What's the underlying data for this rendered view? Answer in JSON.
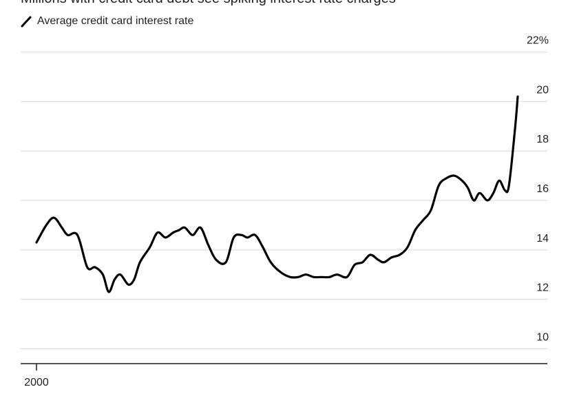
{
  "chart_data": {
    "type": "line",
    "title": "Millions with credit card debt see spiking interest rate charges",
    "legend": {
      "placement": "top-left",
      "entries": [
        "Average credit card interest rate"
      ]
    },
    "series": [
      {
        "name": "Average credit card interest rate",
        "color": "#000000",
        "points": [
          [
            2000.0,
            14.3
          ],
          [
            2000.5,
            15.0
          ],
          [
            2000.9,
            15.3
          ],
          [
            2001.3,
            14.9
          ],
          [
            2001.6,
            14.6
          ],
          [
            2002.1,
            14.6
          ],
          [
            2002.6,
            13.3
          ],
          [
            2003.0,
            13.3
          ],
          [
            2003.4,
            13.0
          ],
          [
            2003.7,
            12.3
          ],
          [
            2004.0,
            12.8
          ],
          [
            2004.3,
            13.0
          ],
          [
            2004.7,
            12.6
          ],
          [
            2005.0,
            12.8
          ],
          [
            2005.3,
            13.5
          ],
          [
            2005.8,
            14.1
          ],
          [
            2006.2,
            14.7
          ],
          [
            2006.6,
            14.5
          ],
          [
            2007.0,
            14.7
          ],
          [
            2007.3,
            14.8
          ],
          [
            2007.6,
            14.9
          ],
          [
            2008.0,
            14.6
          ],
          [
            2008.4,
            14.9
          ],
          [
            2008.8,
            14.2
          ],
          [
            2009.2,
            13.6
          ],
          [
            2009.7,
            13.5
          ],
          [
            2010.1,
            14.5
          ],
          [
            2010.5,
            14.6
          ],
          [
            2010.8,
            14.5
          ],
          [
            2011.2,
            14.6
          ],
          [
            2011.6,
            14.1
          ],
          [
            2012.0,
            13.5
          ],
          [
            2012.5,
            13.1
          ],
          [
            2013.0,
            12.9
          ],
          [
            2013.4,
            12.9
          ],
          [
            2013.8,
            13.0
          ],
          [
            2014.2,
            12.9
          ],
          [
            2014.6,
            12.9
          ],
          [
            2015.0,
            12.9
          ],
          [
            2015.4,
            13.0
          ],
          [
            2015.9,
            12.9
          ],
          [
            2016.3,
            13.4
          ],
          [
            2016.7,
            13.5
          ],
          [
            2017.1,
            13.8
          ],
          [
            2017.5,
            13.6
          ],
          [
            2017.8,
            13.5
          ],
          [
            2018.2,
            13.7
          ],
          [
            2018.6,
            13.8
          ],
          [
            2019.0,
            14.1
          ],
          [
            2019.4,
            14.8
          ],
          [
            2019.8,
            15.2
          ],
          [
            2020.2,
            15.6
          ],
          [
            2020.6,
            16.6
          ],
          [
            2021.0,
            16.9
          ],
          [
            2021.4,
            17.0
          ],
          [
            2021.8,
            16.8
          ],
          [
            2022.1,
            16.5
          ],
          [
            2022.4,
            16.0
          ],
          [
            2022.7,
            16.3
          ],
          [
            2023.1,
            16.0
          ],
          [
            2023.4,
            16.3
          ],
          [
            2023.7,
            16.8
          ],
          [
            2024.0,
            16.4
          ],
          [
            2024.2,
            16.6
          ],
          [
            2024.5,
            18.8
          ],
          [
            2024.65,
            20.2
          ]
        ]
      }
    ],
    "x_axis": {
      "min": 2000,
      "max": 2024.65,
      "ticks": [
        {
          "value": 2000,
          "label": "2000"
        }
      ]
    },
    "y_axis": {
      "position": "right",
      "min": 9.4,
      "max": 22.1,
      "ticks": [
        {
          "value": 22,
          "label": "22%"
        },
        {
          "value": 20,
          "label": "20"
        },
        {
          "value": 18,
          "label": "18"
        },
        {
          "value": 16,
          "label": "16"
        },
        {
          "value": 14,
          "label": "14"
        },
        {
          "value": 12,
          "label": "12"
        },
        {
          "value": 10,
          "label": "10"
        }
      ]
    },
    "grid": true
  }
}
